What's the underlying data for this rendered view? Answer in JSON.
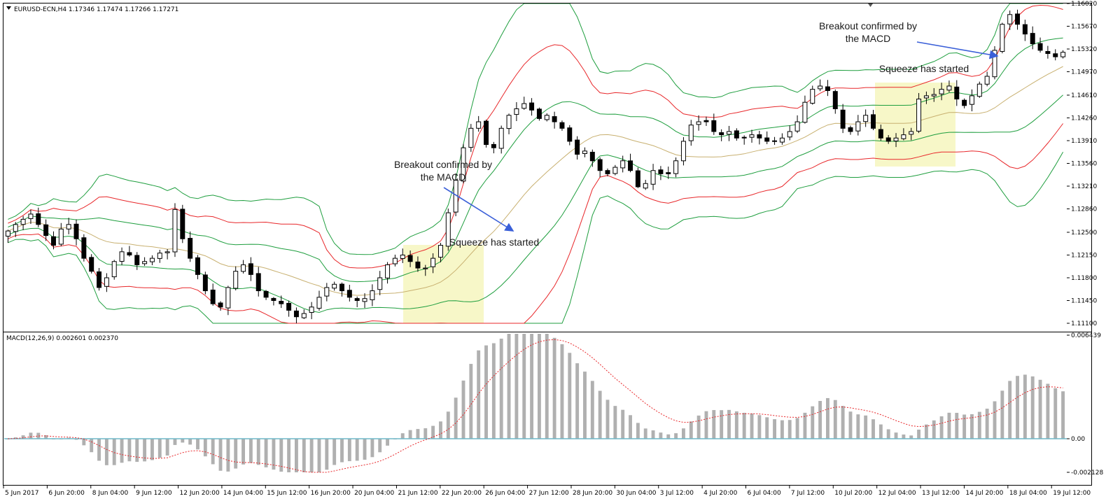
{
  "header": {
    "symbol_line": "EURUSD-ECN,H4  1.17346 1.17474 1.17266 1.17271",
    "macd_line": "MACD(12,26,9) 0.002601 0.002370"
  },
  "annotations": {
    "squeeze_1": "Squeeze has started",
    "breakout_1_line1": "Breakout confirmed by",
    "breakout_1_line2": "the MACD",
    "squeeze_2": "Squeeze has started",
    "breakout_2_line1": "Breakout confirmed by",
    "breakout_2_line2": "the MACD"
  },
  "colors": {
    "bullish": "#ffffff",
    "bearish": "#000000",
    "inner_band": "#e8272a",
    "outer_band": "#1e9e3e",
    "middle_band": "#c8b070",
    "macd_hist": "#b0b0b0",
    "macd_signal": "#e8272a",
    "zero_line": "#6fb8c8",
    "squeeze": "#f7f7c8",
    "arrow": "#3a5fd8"
  },
  "chart_data": [
    {
      "type": "candlestick",
      "title": "EURUSD-ECN,H4",
      "ylim": [
        1.111,
        1.1602
      ],
      "y_ticks": [
        "1.16020",
        "1.15670",
        "1.15320",
        "1.14970",
        "1.14610",
        "1.14260",
        "1.13910",
        "1.13560",
        "1.13210",
        "1.12860",
        "1.12500",
        "1.12150",
        "1.11800",
        "1.11450",
        "1.11100"
      ],
      "x_ticks": [
        "5 Jun 2017",
        "6 Jun 20:00",
        "8 Jun 04:00",
        "9 Jun 12:00",
        "12 Jun 20:00",
        "14 Jun 04:00",
        "15 Jun 12:00",
        "16 Jun 20:00",
        "20 Jun 04:00",
        "21 Jun 12:00",
        "22 Jun 20:00",
        "26 Jun 04:00",
        "27 Jun 12:00",
        "28 Jun 20:00",
        "30 Jun 04:00",
        "3 Jul 12:00",
        "4 Jul 20:00",
        "6 Jul 04:00",
        "7 Jul 12:00",
        "10 Jul 20:00",
        "12 Jul 04:00",
        "13 Jul 12:00",
        "14 Jul 20:00",
        "18 Jul 04:00",
        "19 Jul 12:00"
      ],
      "close_path": [
        1.1252,
        1.1262,
        1.127,
        1.1278,
        1.1262,
        1.1245,
        1.123,
        1.1255,
        1.1262,
        1.124,
        1.121,
        1.119,
        1.1165,
        1.118,
        1.1205,
        1.122,
        1.1215,
        1.12,
        1.1205,
        1.121,
        1.1218,
        1.122,
        1.1285,
        1.124,
        1.121,
        1.1185,
        1.116,
        1.114,
        1.1135,
        1.1165,
        1.119,
        1.12,
        1.1185,
        1.116,
        1.115,
        1.1145,
        1.114,
        1.113,
        1.112,
        1.1125,
        1.1135,
        1.115,
        1.1165,
        1.117,
        1.116,
        1.115,
        1.1145,
        1.1148,
        1.116,
        1.118,
        1.12,
        1.121,
        1.1215,
        1.1205,
        1.1195,
        1.1195,
        1.121,
        1.123,
        1.128,
        1.133,
        1.138,
        1.141,
        1.142,
        1.1385,
        1.138,
        1.141,
        1.143,
        1.144,
        1.1448,
        1.1438,
        1.1425,
        1.143,
        1.142,
        1.141,
        1.139,
        1.137,
        1.1375,
        1.136,
        1.1345,
        1.134,
        1.135,
        1.136,
        1.1345,
        1.132,
        1.1325,
        1.1345,
        1.134,
        1.134,
        1.136,
        1.139,
        1.1415,
        1.142,
        1.142,
        1.1405,
        1.14,
        1.1405,
        1.1395,
        1.1395,
        1.14,
        1.1395,
        1.139,
        1.139,
        1.1395,
        1.1405,
        1.142,
        1.145,
        1.147,
        1.1475,
        1.1468,
        1.144,
        1.141,
        1.1405,
        1.142,
        1.143,
        1.141,
        1.1395,
        1.139,
        1.1395,
        1.14,
        1.1405,
        1.1455,
        1.146,
        1.1462,
        1.147,
        1.1475,
        1.1455,
        1.1445,
        1.146,
        1.1478,
        1.149,
        1.153,
        1.157,
        1.1585,
        1.157,
        1.1555,
        1.154,
        1.153,
        1.1525,
        1.152,
        1.1527
      ],
      "series": [
        {
          "name": "Bollinger Bands (inner)"
        },
        {
          "name": "Bollinger Bands (outer)"
        },
        {
          "name": "Middle band"
        }
      ],
      "highlight_zones": [
        {
          "label": "Squeeze has started",
          "x_from": "21 Jun 12:00",
          "x_to": "23 Jun"
        },
        {
          "label": "Squeeze has started",
          "x_from": "12 Jul 04:00",
          "x_to": "13 Jul 20:00"
        }
      ]
    },
    {
      "type": "bar",
      "title": "MACD(12,26,9)",
      "ylim": [
        -0.002128,
        0.006439
      ],
      "y_ticks": [
        "0.006439",
        "0.00",
        "-0.002128"
      ],
      "values_last": {
        "macd": 0.002601,
        "signal": 0.00237
      }
    }
  ]
}
